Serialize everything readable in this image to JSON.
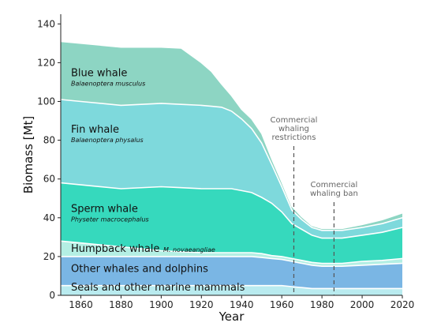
{
  "chart_data": {
    "type": "area",
    "stacked": true,
    "xlabel": "Year",
    "ylabel": "Biomass [Mt]",
    "xlim": [
      1850,
      2020
    ],
    "ylim": [
      0,
      145
    ],
    "xticks": [
      1860,
      1880,
      1900,
      1920,
      1940,
      1960,
      1980,
      2000,
      2020
    ],
    "yticks": [
      0,
      20,
      40,
      60,
      80,
      100,
      120,
      140
    ],
    "grid": false,
    "x": [
      1850,
      1860,
      1880,
      1900,
      1910,
      1920,
      1925,
      1930,
      1935,
      1940,
      1945,
      1950,
      1955,
      1960,
      1965,
      1970,
      1975,
      1980,
      1985,
      1990,
      2000,
      2010,
      2020
    ],
    "series": [
      {
        "name": "Seals and other marine mammals",
        "color": "#b9ebef",
        "values": [
          5,
          5,
          5,
          5,
          5,
          5,
          5,
          5,
          5,
          5,
          5,
          5,
          5,
          5,
          4.5,
          4,
          3.5,
          3.5,
          3.5,
          3.5,
          3.5,
          3.5,
          3.5
        ]
      },
      {
        "name": "Other whales and dolphins",
        "color": "#7ab6e4",
        "values": [
          15,
          15,
          15,
          15,
          15,
          15,
          15,
          15,
          15,
          15,
          15,
          14.5,
          14,
          13.5,
          13,
          12.5,
          12,
          11.5,
          11.5,
          11.5,
          12,
          12.5,
          13
        ]
      },
      {
        "name": "Humpback whale",
        "scientific": "M. novaeangliae",
        "color": "#b4efe4",
        "values": [
          8,
          7,
          5,
          3,
          2.5,
          2,
          2,
          2,
          2,
          2,
          2,
          2,
          1.5,
          1.5,
          1.5,
          1.5,
          1.5,
          1.5,
          1.5,
          1.5,
          2,
          2,
          2.5
        ]
      },
      {
        "name": "Sperm whale",
        "scientific": "Physeter macrocephalus",
        "color": "#36d9bd",
        "values": [
          30,
          30,
          30,
          33,
          33,
          33,
          33,
          33,
          33,
          32,
          31,
          29,
          27,
          23,
          18,
          16,
          14,
          13,
          13,
          13,
          13.5,
          14.5,
          16
        ]
      },
      {
        "name": "Fin whale",
        "scientific": "Balaenoptera physalus",
        "color": "#7ed9dc",
        "values": [
          43,
          43,
          43,
          43,
          43,
          43,
          42.5,
          42,
          40,
          37,
          33,
          28,
          20,
          13,
          7,
          5,
          4,
          4,
          4,
          4,
          4,
          4.5,
          5
        ]
      },
      {
        "name": "Blue whale",
        "scientific": "Balaenoptera musculus",
        "color": "#8dd5c3",
        "values": [
          30,
          30,
          30,
          29,
          29,
          22,
          18,
          12,
          8,
          5,
          5,
          5,
          3,
          2.5,
          2,
          1.5,
          1,
          1,
          1,
          1,
          1.5,
          2,
          2.5
        ]
      }
    ],
    "annotations": [
      {
        "text_lines": [
          "Commercial",
          "whaling",
          "restrictions"
        ],
        "x": 1966
      },
      {
        "text_lines": [
          "Commercial",
          "whaling ban"
        ],
        "x": 1986
      }
    ]
  }
}
